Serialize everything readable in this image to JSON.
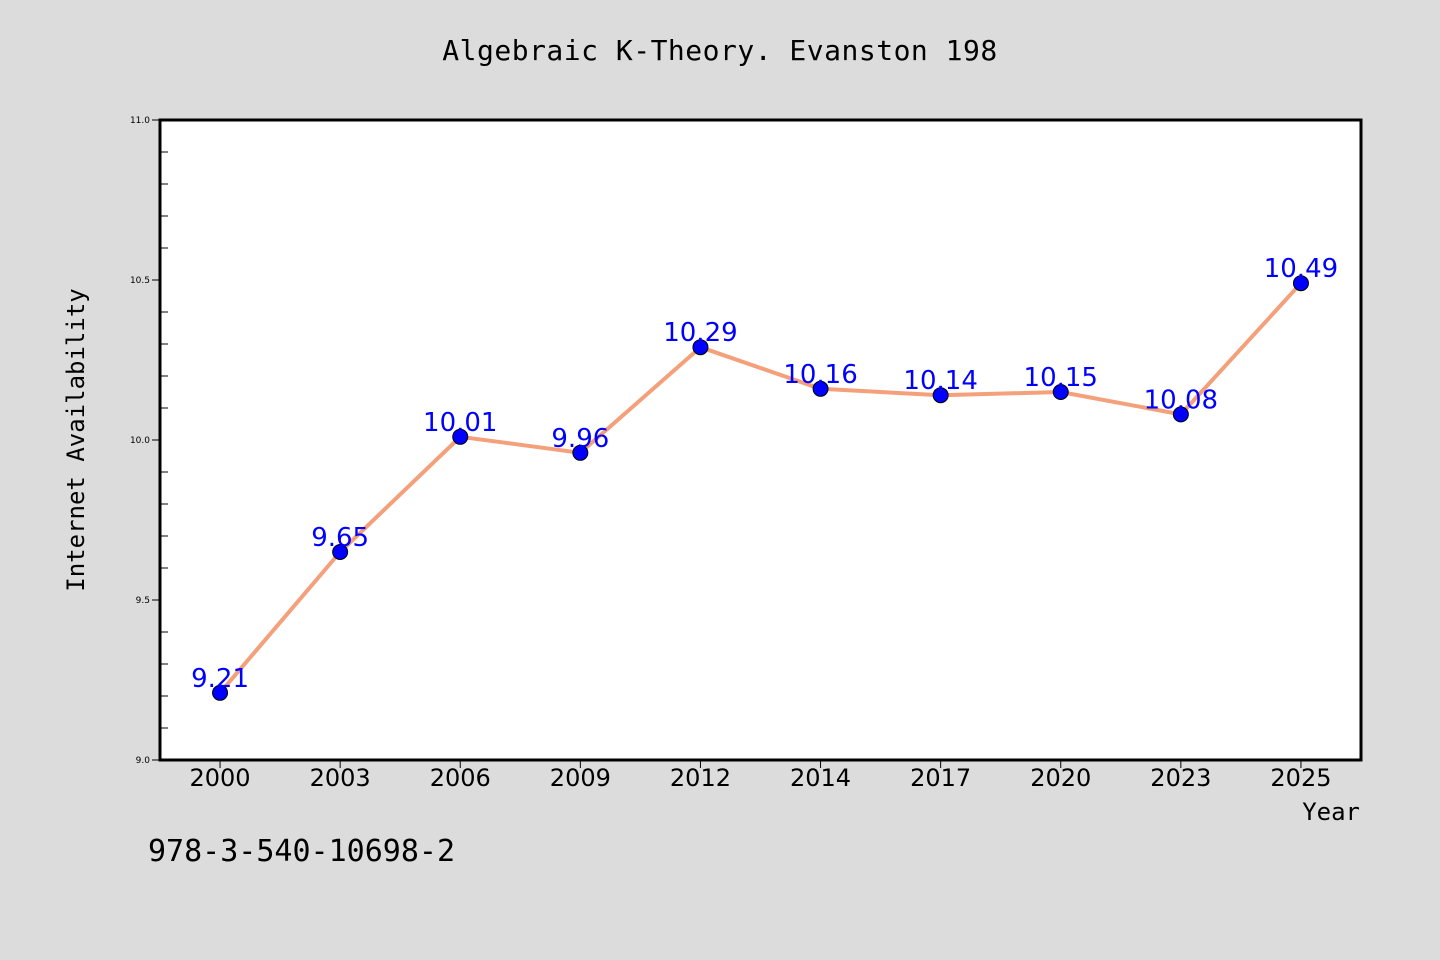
{
  "chart_data": {
    "type": "line",
    "title": "Algebraic K-Theory. Evanston 198",
    "xlabel": "Year",
    "ylabel": "Internet Availability",
    "categories": [
      "2000",
      "2003",
      "2006",
      "2009",
      "2012",
      "2014",
      "2017",
      "2020",
      "2023",
      "2025"
    ],
    "series": [
      {
        "values": [
          9.21,
          9.65,
          10.01,
          9.96,
          10.29,
          10.16,
          10.14,
          10.15,
          10.08,
          10.49
        ],
        "value_labels": [
          "9.21",
          "9.65",
          "10.01",
          "9.96",
          "10.29",
          "10.16",
          "10.14",
          "10.15",
          "10.08",
          "10.49"
        ]
      }
    ],
    "ylim": [
      9.0,
      11.0
    ],
    "yticks": [
      "9.0",
      "9.5",
      "10.0",
      "10.5",
      "11.0"
    ],
    "grid": false,
    "colors": {
      "line": "#f4a07a",
      "marker": "#0000ff",
      "data_label": "#0000ff",
      "background": "#dcdcdc",
      "plot_area": "#ffffff"
    }
  },
  "footnote": "978-3-540-10698-2"
}
